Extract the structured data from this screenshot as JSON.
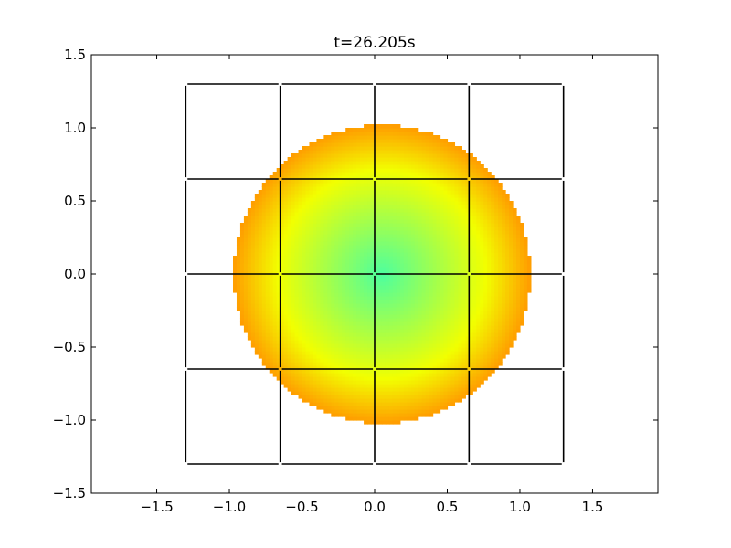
{
  "chart_data": {
    "type": "heatmap",
    "title": "t=26.205s",
    "xlabel": "",
    "ylabel": "",
    "xlim": [
      -1.95,
      1.95
    ],
    "ylim": [
      -1.5,
      1.5
    ],
    "xticks": [
      -1.5,
      -1.0,
      -0.5,
      0.0,
      0.5,
      1.0,
      1.5
    ],
    "yticks": [
      -1.5,
      -1.0,
      -0.5,
      0.0,
      0.5,
      1.0,
      1.5
    ],
    "xtick_labels": [
      "−1.5",
      "−1.0",
      "−0.5",
      "0.0",
      "0.5",
      "1.0",
      "1.5"
    ],
    "ytick_labels": [
      "−1.5",
      "−1.0",
      "−0.5",
      "0.0",
      "0.5",
      "1.0",
      "1.5"
    ],
    "grid": false,
    "field": {
      "shape": "disk",
      "center": [
        0.05,
        0.0
      ],
      "radius": 1.02,
      "colormap": {
        "center_color": "#4dff9f",
        "mid_color": "#f2ff00",
        "edge_color": "#ff9d00"
      }
    },
    "mesh": {
      "x_lines": [
        -1.3,
        -0.65,
        0.0,
        0.65,
        1.3
      ],
      "y_lines": [
        -1.3,
        -0.65,
        0.0,
        0.65,
        1.3
      ],
      "color": "#000000"
    }
  }
}
